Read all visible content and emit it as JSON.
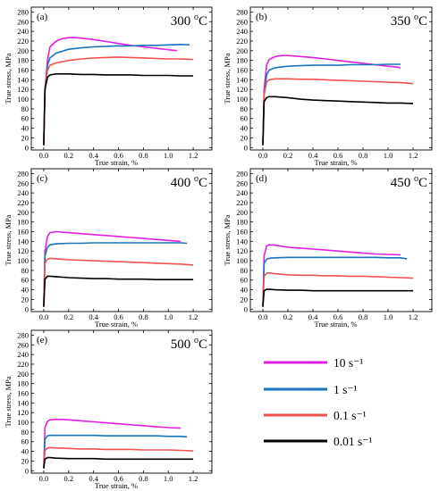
{
  "figure": {
    "temp_unit": "C",
    "temp_prefix": "o"
  },
  "legend": {
    "entries": [
      {
        "label": "10 s⁻¹",
        "color": "#e020e0"
      },
      {
        "label": "1 s⁻¹",
        "color": "#1a74bd"
      },
      {
        "label": "0.1 s⁻¹",
        "color": "#f05050"
      },
      {
        "label": "0.01 s⁻¹",
        "color": "#000000"
      }
    ]
  },
  "chart_data": [
    {
      "type": "line",
      "panel_label": "(a)",
      "temperature": "300",
      "xlabel": "True strain, %",
      "ylabel": "True stress, MPa",
      "xlim": [
        -0.1,
        1.35
      ],
      "ylim": [
        -5,
        290
      ],
      "xticks": [
        "0.0",
        "0.2",
        "0.4",
        "0.6",
        "0.8",
        "1.0",
        "1.2"
      ],
      "yticks": [
        "0",
        "20",
        "40",
        "60",
        "80",
        "100",
        "120",
        "140",
        "160",
        "180",
        "200",
        "220",
        "240",
        "260",
        "280"
      ],
      "series": [
        {
          "name": "10 s⁻¹",
          "color": "#e020e0",
          "x": [
            0,
            0.01,
            0.03,
            0.05,
            0.1,
            0.15,
            0.2,
            0.25,
            0.3,
            0.4,
            0.5,
            0.6,
            0.7,
            0.8,
            0.9,
            1.0,
            1.07
          ],
          "y": [
            5,
            120,
            180,
            208,
            220,
            225,
            227,
            227,
            226,
            223,
            219,
            215,
            211,
            208,
            205,
            202,
            200
          ]
        },
        {
          "name": "1 s⁻¹",
          "color": "#1a74bd",
          "x": [
            0,
            0.01,
            0.03,
            0.05,
            0.1,
            0.2,
            0.3,
            0.4,
            0.5,
            0.6,
            0.7,
            0.8,
            0.9,
            1.0,
            1.1,
            1.17
          ],
          "y": [
            5,
            120,
            170,
            185,
            195,
            203,
            206,
            208,
            209,
            210,
            210,
            211,
            211,
            212,
            213,
            212
          ]
        },
        {
          "name": "0.1 s⁻¹",
          "color": "#f05050",
          "x": [
            0,
            0.01,
            0.03,
            0.05,
            0.1,
            0.2,
            0.3,
            0.4,
            0.5,
            0.6,
            0.7,
            0.8,
            0.9,
            1.0,
            1.1,
            1.2
          ],
          "y": [
            5,
            120,
            160,
            170,
            175,
            180,
            183,
            185,
            186,
            187,
            186,
            185,
            184,
            183,
            183,
            182
          ]
        },
        {
          "name": "0.01 s⁻¹",
          "color": "#000000",
          "x": [
            0,
            0.01,
            0.03,
            0.05,
            0.1,
            0.2,
            0.3,
            0.4,
            0.5,
            0.6,
            0.7,
            0.8,
            0.9,
            1.0,
            1.1,
            1.2
          ],
          "y": [
            5,
            120,
            145,
            150,
            152,
            152,
            151,
            151,
            150,
            150,
            150,
            149,
            149,
            149,
            148,
            148
          ]
        }
      ]
    },
    {
      "type": "line",
      "panel_label": "(b)",
      "temperature": "350",
      "xlabel": "True strain, %",
      "ylabel": "True stress, MPa",
      "xlim": [
        -0.1,
        1.35
      ],
      "ylim": [
        -5,
        290
      ],
      "xticks": [
        "0.0",
        "0.2",
        "0.4",
        "0.6",
        "0.8",
        "1.0",
        "1.2"
      ],
      "yticks": [
        "0",
        "20",
        "40",
        "60",
        "80",
        "100",
        "120",
        "140",
        "160",
        "180",
        "200",
        "220",
        "240",
        "260",
        "280"
      ],
      "series": [
        {
          "name": "10 s⁻¹",
          "color": "#e020e0",
          "x": [
            0,
            0.01,
            0.03,
            0.05,
            0.1,
            0.15,
            0.2,
            0.3,
            0.4,
            0.5,
            0.6,
            0.7,
            0.8,
            0.9,
            1.0,
            1.08,
            1.1
          ],
          "y": [
            5,
            120,
            170,
            182,
            188,
            190,
            190,
            188,
            186,
            183,
            180,
            177,
            174,
            171,
            168,
            166,
            164
          ]
        },
        {
          "name": "1 s⁻¹",
          "color": "#1a74bd",
          "x": [
            0,
            0.01,
            0.03,
            0.05,
            0.1,
            0.2,
            0.3,
            0.4,
            0.5,
            0.6,
            0.7,
            0.8,
            0.9,
            1.0,
            1.1
          ],
          "y": [
            5,
            110,
            150,
            160,
            165,
            168,
            169,
            170,
            170,
            170,
            171,
            171,
            171,
            172,
            172
          ]
        },
        {
          "name": "0.1 s⁻¹",
          "color": "#f05050",
          "x": [
            0,
            0.01,
            0.03,
            0.05,
            0.1,
            0.2,
            0.3,
            0.4,
            0.5,
            0.6,
            0.7,
            0.8,
            0.9,
            1.0,
            1.1,
            1.2
          ],
          "y": [
            5,
            110,
            135,
            140,
            142,
            142,
            141,
            141,
            140,
            139,
            138,
            137,
            136,
            135,
            134,
            132
          ]
        },
        {
          "name": "0.01 s⁻¹",
          "color": "#000000",
          "x": [
            0,
            0.01,
            0.03,
            0.05,
            0.1,
            0.2,
            0.3,
            0.4,
            0.5,
            0.6,
            0.7,
            0.8,
            0.9,
            1.0,
            1.1,
            1.2
          ],
          "y": [
            5,
            95,
            103,
            105,
            105,
            103,
            100,
            98,
            97,
            96,
            95,
            94,
            93,
            92,
            92,
            91
          ]
        }
      ]
    },
    {
      "type": "line",
      "panel_label": "(c)",
      "temperature": "400",
      "xlabel": "True strain, %",
      "ylabel": "True stress, MPa",
      "xlim": [
        -0.1,
        1.35
      ],
      "ylim": [
        -5,
        290
      ],
      "xticks": [
        "0.0",
        "0.2",
        "0.4",
        "0.6",
        "0.8",
        "1.0",
        "1.2"
      ],
      "yticks": [
        "0",
        "20",
        "40",
        "60",
        "80",
        "100",
        "120",
        "140",
        "160",
        "180",
        "200",
        "220",
        "240",
        "260",
        "280"
      ],
      "series": [
        {
          "name": "10 s⁻¹",
          "color": "#e020e0",
          "x": [
            0,
            0.01,
            0.03,
            0.05,
            0.1,
            0.15,
            0.2,
            0.3,
            0.4,
            0.5,
            0.6,
            0.7,
            0.8,
            0.9,
            1.0,
            1.1
          ],
          "y": [
            5,
            120,
            150,
            158,
            160,
            159,
            158,
            156,
            154,
            152,
            150,
            148,
            146,
            144,
            142,
            140
          ]
        },
        {
          "name": "1 s⁻¹",
          "color": "#1a74bd",
          "x": [
            0,
            0.01,
            0.03,
            0.05,
            0.1,
            0.2,
            0.3,
            0.4,
            0.5,
            0.6,
            0.7,
            0.8,
            0.9,
            1.0,
            1.1,
            1.15
          ],
          "y": [
            5,
            110,
            128,
            133,
            135,
            136,
            136,
            137,
            137,
            137,
            137,
            137,
            137,
            137,
            137,
            136
          ]
        },
        {
          "name": "0.1 s⁻¹",
          "color": "#f05050",
          "x": [
            0,
            0.01,
            0.03,
            0.05,
            0.1,
            0.2,
            0.3,
            0.4,
            0.5,
            0.6,
            0.7,
            0.8,
            0.9,
            1.0,
            1.1,
            1.2
          ],
          "y": [
            5,
            95,
            103,
            105,
            104,
            102,
            101,
            100,
            99,
            98,
            97,
            96,
            95,
            94,
            93,
            91
          ]
        },
        {
          "name": "0.01 s⁻¹",
          "color": "#000000",
          "x": [
            0,
            0.01,
            0.03,
            0.05,
            0.1,
            0.2,
            0.3,
            0.4,
            0.5,
            0.6,
            0.7,
            0.8,
            0.9,
            1.0,
            1.1,
            1.2
          ],
          "y": [
            5,
            62,
            68,
            68,
            67,
            65,
            64,
            63,
            63,
            62,
            62,
            62,
            61,
            61,
            61,
            61
          ]
        }
      ]
    },
    {
      "type": "line",
      "panel_label": "(d)",
      "temperature": "450",
      "xlabel": "True strain, %",
      "ylabel": "True stress, MPa",
      "xlim": [
        -0.1,
        1.35
      ],
      "ylim": [
        -5,
        290
      ],
      "xticks": [
        "0.0",
        "0.2",
        "0.4",
        "0.6",
        "0.8",
        "1.0",
        "1.2"
      ],
      "yticks": [
        "0",
        "20",
        "40",
        "60",
        "80",
        "100",
        "120",
        "140",
        "160",
        "180",
        "200",
        "220",
        "240",
        "260",
        "280"
      ],
      "series": [
        {
          "name": "10 s⁻¹",
          "color": "#e020e0",
          "x": [
            0,
            0.01,
            0.03,
            0.05,
            0.1,
            0.2,
            0.3,
            0.4,
            0.5,
            0.6,
            0.7,
            0.8,
            0.9,
            1.0,
            1.1
          ],
          "y": [
            5,
            110,
            130,
            133,
            132,
            128,
            126,
            124,
            122,
            120,
            118,
            116,
            114,
            113,
            112
          ]
        },
        {
          "name": "1 s⁻¹",
          "color": "#1a74bd",
          "x": [
            0,
            0.01,
            0.03,
            0.05,
            0.1,
            0.2,
            0.3,
            0.4,
            0.5,
            0.6,
            0.7,
            0.8,
            0.9,
            1.0,
            1.1,
            1.15
          ],
          "y": [
            5,
            95,
            103,
            105,
            106,
            107,
            107,
            107,
            107,
            107,
            107,
            107,
            107,
            106,
            106,
            104
          ]
        },
        {
          "name": "0.1 s⁻¹",
          "color": "#f05050",
          "x": [
            0,
            0.01,
            0.03,
            0.05,
            0.1,
            0.2,
            0.3,
            0.4,
            0.5,
            0.6,
            0.7,
            0.8,
            0.9,
            1.0,
            1.1,
            1.2
          ],
          "y": [
            5,
            68,
            74,
            75,
            73,
            71,
            70,
            70,
            69,
            69,
            68,
            68,
            67,
            66,
            65,
            64
          ]
        },
        {
          "name": "0.01 s⁻¹",
          "color": "#000000",
          "x": [
            0,
            0.01,
            0.03,
            0.05,
            0.1,
            0.2,
            0.3,
            0.4,
            0.5,
            0.6,
            0.7,
            0.8,
            0.9,
            1.0,
            1.1,
            1.2
          ],
          "y": [
            5,
            38,
            41,
            41,
            40,
            39,
            39,
            38,
            38,
            38,
            38,
            38,
            38,
            38,
            38,
            38
          ]
        }
      ]
    },
    {
      "type": "line",
      "panel_label": "(e)",
      "temperature": "500",
      "xlabel": "True strain, %",
      "ylabel": "True stress, MPa",
      "xlim": [
        -0.1,
        1.35
      ],
      "ylim": [
        -5,
        290
      ],
      "xticks": [
        "0.0",
        "0.2",
        "0.4",
        "0.6",
        "0.8",
        "1.0",
        "1.2"
      ],
      "yticks": [
        "0",
        "20",
        "40",
        "60",
        "80",
        "100",
        "120",
        "140",
        "160",
        "180",
        "200",
        "220",
        "240",
        "260",
        "280"
      ],
      "series": [
        {
          "name": "10 s⁻¹",
          "color": "#e020e0",
          "x": [
            0,
            0.01,
            0.03,
            0.05,
            0.1,
            0.15,
            0.2,
            0.3,
            0.4,
            0.5,
            0.6,
            0.7,
            0.8,
            0.9,
            1.0,
            1.1
          ],
          "y": [
            5,
            90,
            102,
            105,
            106,
            106,
            105,
            103,
            101,
            99,
            97,
            95,
            93,
            91,
            89,
            88
          ]
        },
        {
          "name": "1 s⁻¹",
          "color": "#1a74bd",
          "x": [
            0,
            0.01,
            0.03,
            0.05,
            0.1,
            0.2,
            0.3,
            0.4,
            0.5,
            0.6,
            0.7,
            0.8,
            0.9,
            1.0,
            1.1,
            1.15
          ],
          "y": [
            5,
            65,
            72,
            73,
            73,
            73,
            73,
            73,
            72,
            72,
            72,
            72,
            72,
            71,
            71,
            70
          ]
        },
        {
          "name": "0.1 s⁻¹",
          "color": "#f05050",
          "x": [
            0,
            0.01,
            0.03,
            0.05,
            0.1,
            0.2,
            0.3,
            0.4,
            0.5,
            0.6,
            0.7,
            0.8,
            0.9,
            1.0,
            1.1,
            1.2
          ],
          "y": [
            5,
            42,
            47,
            48,
            47,
            46,
            45,
            45,
            44,
            44,
            44,
            43,
            43,
            43,
            42,
            41
          ]
        },
        {
          "name": "0.01 s⁻¹",
          "color": "#000000",
          "x": [
            0,
            0.01,
            0.03,
            0.05,
            0.1,
            0.2,
            0.3,
            0.4,
            0.5,
            0.6,
            0.7,
            0.8,
            0.9,
            1.0,
            1.1,
            1.2
          ],
          "y": [
            5,
            24,
            27,
            27,
            26,
            25,
            25,
            25,
            24,
            24,
            24,
            24,
            24,
            24,
            24,
            24
          ]
        }
      ]
    }
  ]
}
